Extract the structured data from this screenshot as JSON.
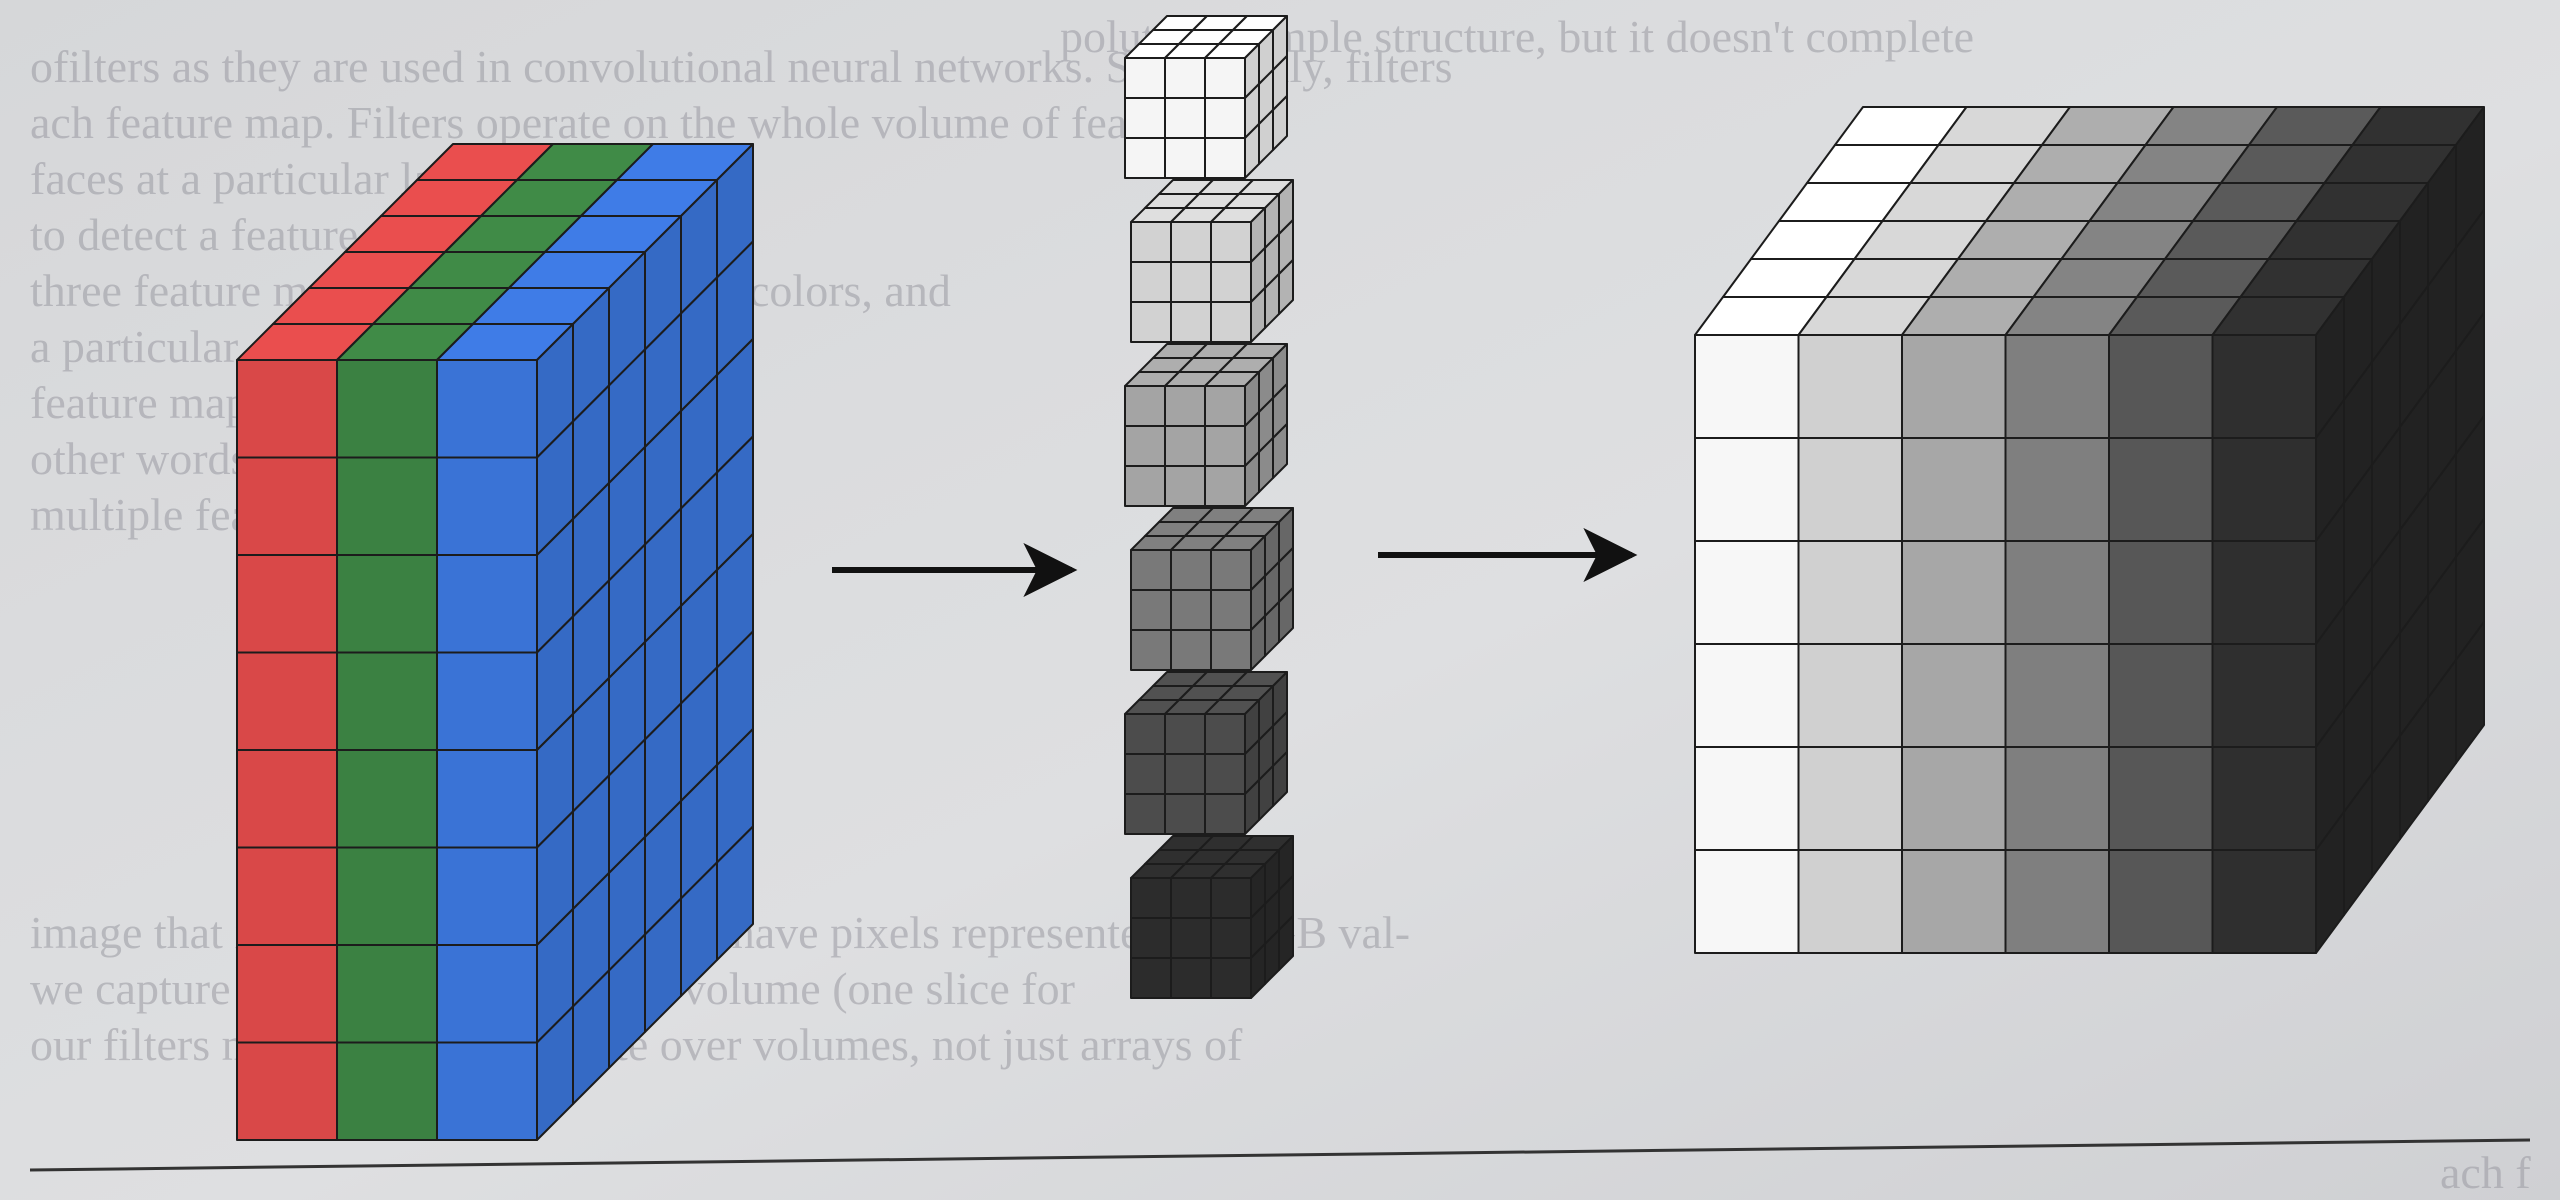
{
  "background_text": [
    "polut is a simple structure, but it doesn't complete",
    "ofilters as they are used in convolutional neural networks. Specifically, filters",
    "ach feature map. Filters operate on the whole volume of fea",
    "faces at a particular layer, com a s",
    "to detect a feature, particular a",
    "three feature maps, one for each of the colors, and",
    "a particular color volume a",
    "feature maps over the space",
    "other words, to make decisions about",
    "multiple feature maps. This is",
    "image that is a volume. These images have pixels represented by RGB val-",
    "we capture these slices in the input volume (one slice for",
    "our filters must be able to operate over volumes, not just arrays of",
    "ach f"
  ],
  "input_volume": {
    "slices": [
      "red",
      "green",
      "blue"
    ],
    "colors": {
      "red": "#d94848",
      "green": "#3b8142",
      "blue": "#3a73d6"
    },
    "rows": 8,
    "depth": 6
  },
  "filter_stack": {
    "count": 6,
    "grid": "3x3x3",
    "shades": [
      "#f5f5f5",
      "#d2d2d2",
      "#a4a4a4",
      "#797979",
      "#4c4c4c",
      "#2c2c2c"
    ]
  },
  "output_volume": {
    "columns": 6,
    "rows": 6,
    "depth": 6,
    "shades": [
      "#f7f7f7",
      "#d0d0d0",
      "#a7a7a7",
      "#7f7f7f",
      "#575757",
      "#2f2f2f"
    ]
  },
  "arrows": [
    "input-to-filters",
    "filters-to-output"
  ],
  "colors": {
    "grid_line": "#1c1c1c",
    "arrow": "#111111",
    "paper": "#d9dadc",
    "text": "#9a9aa2"
  }
}
